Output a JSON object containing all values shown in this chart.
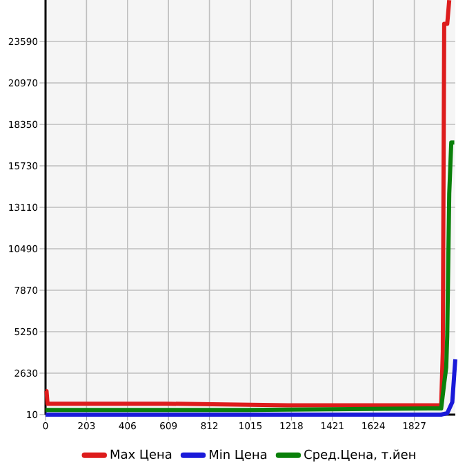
{
  "chart_data": {
    "type": "line",
    "xlim": [
      0,
      2030
    ],
    "xticks": [
      0,
      203,
      406,
      609,
      812,
      1015,
      1218,
      1421,
      1624,
      1827
    ],
    "ylim": [
      10,
      26210
    ],
    "yticks": [
      10,
      2630,
      5250,
      7870,
      10490,
      13110,
      15730,
      18350,
      20970,
      23590
    ],
    "grid": true,
    "legend": "bottom",
    "marker": "none",
    "line_style": "solid",
    "series": [
      {
        "name": "Max Цена",
        "color": "#dd1c1c",
        "x": [
          0,
          5,
          10,
          600,
          1200,
          1900,
          1960,
          1968,
          1975,
          1990,
          2000
        ],
        "values": [
          1500,
          1500,
          700,
          700,
          600,
          600,
          600,
          4000,
          24700,
          24700,
          26200
        ]
      },
      {
        "name": "Min Цена",
        "color": "#1a1ad9",
        "x": [
          0,
          1000,
          1960,
          1990,
          2015,
          2030
        ],
        "values": [
          10,
          10,
          10,
          100,
          800,
          3500
        ]
      },
      {
        "name": "Сред.Цена, т.йен",
        "color": "#0a800a",
        "x": [
          0,
          1000,
          1900,
          1960,
          1975,
          1985,
          1990,
          2000,
          2010,
          2025
        ],
        "values": [
          300,
          300,
          400,
          400,
          2000,
          3000,
          5000,
          14000,
          17200,
          17200
        ]
      }
    ]
  }
}
